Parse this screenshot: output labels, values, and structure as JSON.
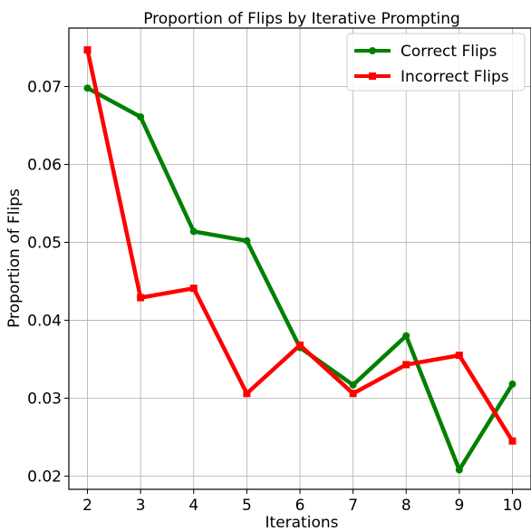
{
  "chart_data": {
    "type": "line",
    "title": "Proportion of Flips by Iterative Prompting",
    "xlabel": "Iterations",
    "ylabel": "Proportion of Flips",
    "x": [
      2,
      3,
      4,
      5,
      6,
      7,
      8,
      9,
      10
    ],
    "xticks": [
      "2",
      "3",
      "4",
      "5",
      "6",
      "7",
      "8",
      "9",
      "10"
    ],
    "yticks": [
      "0.02",
      "0.03",
      "0.04",
      "0.05",
      "0.06",
      "0.07"
    ],
    "xlim": [
      1.65,
      10.35
    ],
    "ylim": [
      0.0183,
      0.0775
    ],
    "grid": true,
    "legend_position": "top-right",
    "series": [
      {
        "name": "Correct Flips",
        "color": "#008000",
        "marker": "circle",
        "values": [
          0.0698,
          0.0661,
          0.0514,
          0.0502,
          0.0365,
          0.0317,
          0.038,
          0.0208,
          0.0318
        ]
      },
      {
        "name": "Incorrect Flips",
        "color": "#ff0000",
        "marker": "square",
        "values": [
          0.0747,
          0.0429,
          0.0441,
          0.0306,
          0.0368,
          0.0306,
          0.0343,
          0.0355,
          0.0245
        ]
      }
    ]
  }
}
